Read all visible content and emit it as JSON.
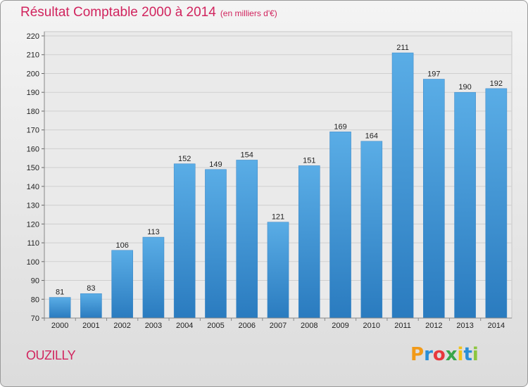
{
  "title": "Résultat Comptable 2000 à 2014",
  "subtitle": "(en milliers d'€)",
  "place": "OUZILLY",
  "logo": {
    "letters": [
      "P",
      "r",
      "o",
      "x",
      "i",
      "t",
      "i"
    ],
    "colors": [
      "#f29a18",
      "#2a8fd6",
      "#e8383c",
      "#3aa64a",
      "#f2c318",
      "#2a8fd6",
      "#8cc63f"
    ]
  },
  "chart_data": {
    "type": "bar",
    "categories": [
      "2000",
      "2001",
      "2002",
      "2003",
      "2004",
      "2005",
      "2006",
      "2007",
      "2008",
      "2009",
      "2010",
      "2011",
      "2012",
      "2013",
      "2014"
    ],
    "values": [
      81,
      83,
      106,
      113,
      152,
      149,
      154,
      121,
      151,
      169,
      164,
      211,
      197,
      190,
      192
    ],
    "ylim": [
      70,
      220
    ],
    "yticks": [
      70,
      80,
      90,
      100,
      110,
      120,
      130,
      140,
      150,
      160,
      170,
      180,
      190,
      200,
      210,
      220
    ],
    "grid": true,
    "bar_color_top": "#5aade6",
    "bar_color_bottom": "#2a7bbf"
  }
}
